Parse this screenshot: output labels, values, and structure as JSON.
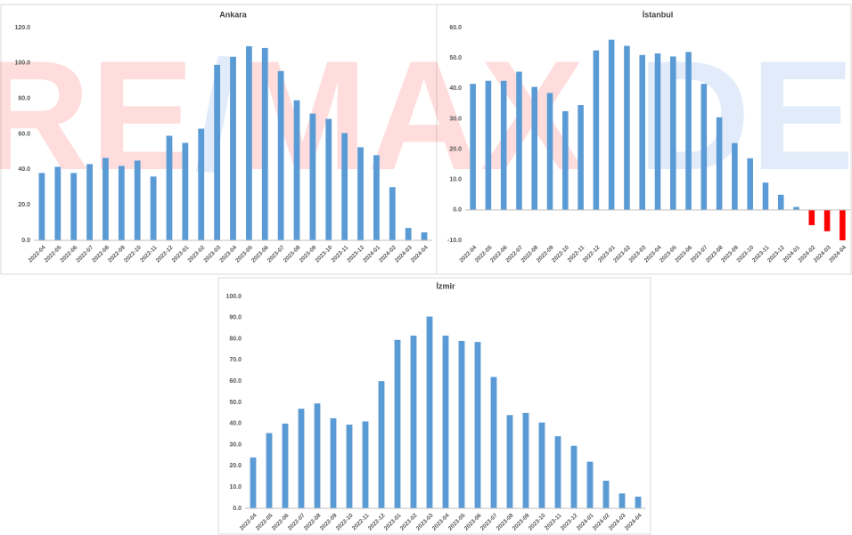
{
  "watermark": {
    "parts": [
      {
        "text": "RE",
        "color": "#ff0000"
      },
      {
        "text": "/",
        "color": "#1f6fe0"
      },
      {
        "text": "MAX",
        "color": "#ff0000"
      },
      {
        "text": "DEHA",
        "color": "#1f6fe0"
      }
    ]
  },
  "chart_data": [
    {
      "type": "bar",
      "title": "Ankara",
      "categories": [
        "2022-04",
        "2022-05",
        "2022-06",
        "2022-07",
        "2022-08",
        "2022-09",
        "2022-10",
        "2022-11",
        "2022-12",
        "2023-01",
        "2023-02",
        "2023-03",
        "2023-04",
        "2023-05",
        "2023-06",
        "2023-07",
        "2023-08",
        "2023-09",
        "2023-10",
        "2023-11",
        "2023-12",
        "2024-01",
        "2024-02",
        "2024-03",
        "2024-04"
      ],
      "values": [
        38,
        41.5,
        38,
        43,
        46.5,
        42,
        45,
        36,
        59,
        55,
        63,
        99,
        103.5,
        109.5,
        108.5,
        95.5,
        79,
        71.5,
        68.5,
        60.5,
        52.5,
        48,
        30,
        7,
        4.5
      ],
      "color": "#5b9bd5",
      "negative_color": "#ff0000",
      "ylim": [
        0,
        120
      ],
      "yticks": [
        {
          "value": 0,
          "label": "0.0"
        },
        {
          "value": 20,
          "label": "20.0"
        },
        {
          "value": 40,
          "label": "40.0"
        },
        {
          "value": 60,
          "label": "60.0"
        },
        {
          "value": 80,
          "label": "80.0"
        },
        {
          "value": 100,
          "label": "100.0"
        },
        {
          "value": 120,
          "label": "120.0"
        }
      ],
      "grid": false
    },
    {
      "type": "bar",
      "title": "İstanbul",
      "categories": [
        "2022-04",
        "2022-05",
        "2022-06",
        "2022-07",
        "2022-08",
        "2022-09",
        "2022-10",
        "2022-11",
        "2022-12",
        "2023-01",
        "2023-02",
        "2023-03",
        "2023-04",
        "2023-05",
        "2023-06",
        "2023-07",
        "2023-08",
        "2023-09",
        "2023-10",
        "2023-11",
        "2023-12",
        "2024-01",
        "2024-02",
        "2024-03",
        "2024-04"
      ],
      "values": [
        41.5,
        42.5,
        42.5,
        45.5,
        40.5,
        38.5,
        32.5,
        34.5,
        52.5,
        56,
        54,
        51,
        51.5,
        50.5,
        52,
        41.5,
        30.5,
        22,
        17,
        9,
        5,
        1,
        -5,
        -7,
        -10
      ],
      "color": "#5b9bd5",
      "negative_color": "#ff0000",
      "ylim": [
        -10,
        60
      ],
      "yticks": [
        {
          "value": -10,
          "label": "-10.0"
        },
        {
          "value": 0,
          "label": "0.0"
        },
        {
          "value": 10,
          "label": "10.0"
        },
        {
          "value": 20,
          "label": "20.0"
        },
        {
          "value": 30,
          "label": "30.0"
        },
        {
          "value": 40,
          "label": "40.0"
        },
        {
          "value": 50,
          "label": "50.0"
        },
        {
          "value": 60,
          "label": "60.0"
        }
      ],
      "grid": false
    },
    {
      "type": "bar",
      "title": "İzmir",
      "categories": [
        "2022-04",
        "2022-05",
        "2022-06",
        "2022-07",
        "2022-08",
        "2022-09",
        "2022-10",
        "2022-11",
        "2022-12",
        "2023-01",
        "2023-02",
        "2023-03",
        "2023-04",
        "2023-05",
        "2023-06",
        "2023-07",
        "2023-08",
        "2023-09",
        "2023-10",
        "2023-11",
        "2023-12",
        "2024-01",
        "2024-02",
        "2024-03",
        "2024-04"
      ],
      "values": [
        24,
        35.5,
        40,
        47,
        49.5,
        42.5,
        39.5,
        41,
        60,
        79.5,
        81.5,
        90.5,
        81.5,
        79,
        78.5,
        62,
        44,
        45,
        40.5,
        34,
        29.5,
        22,
        13,
        7,
        5.5
      ],
      "color": "#5b9bd5",
      "negative_color": "#ff0000",
      "ylim": [
        0,
        100
      ],
      "yticks": [
        {
          "value": 0,
          "label": "0.0"
        },
        {
          "value": 10,
          "label": "10.0"
        },
        {
          "value": 20,
          "label": "20.0"
        },
        {
          "value": 30,
          "label": "30.0"
        },
        {
          "value": 40,
          "label": "40.0"
        },
        {
          "value": 50,
          "label": "50.0"
        },
        {
          "value": 60,
          "label": "60.0"
        },
        {
          "value": 70,
          "label": "70.0"
        },
        {
          "value": 80,
          "label": "80.0"
        },
        {
          "value": 90,
          "label": "90.0"
        },
        {
          "value": 100,
          "label": "100.0"
        }
      ],
      "grid": false
    }
  ]
}
